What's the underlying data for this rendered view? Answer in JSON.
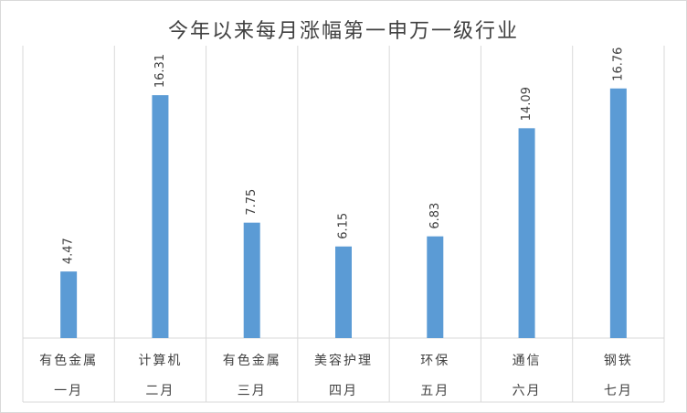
{
  "chart_data": {
    "type": "bar",
    "title": "今年以来每月涨幅第一申万一级行业",
    "categories": [
      "有色金属",
      "计算机",
      "有色金属",
      "美容护理",
      "环保",
      "通信",
      "钢铁"
    ],
    "groups": [
      "一月",
      "二月",
      "三月",
      "四月",
      "五月",
      "六月",
      "七月"
    ],
    "values": [
      4.47,
      16.31,
      7.75,
      6.15,
      6.83,
      14.09,
      16.76
    ],
    "color": "#5b9bd5",
    "ylim": [
      0,
      20
    ],
    "grid": true
  }
}
